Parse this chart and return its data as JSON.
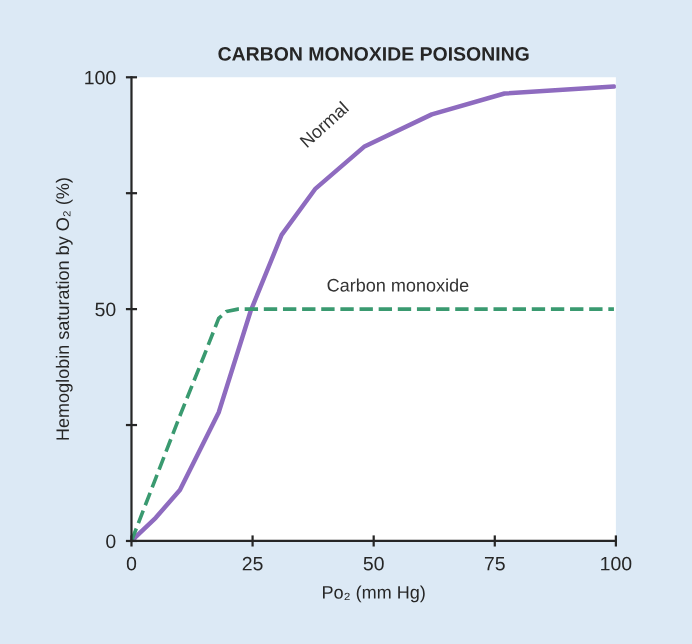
{
  "chart_data": {
    "type": "line",
    "title": "CARBON MONOXIDE POISONING",
    "xlabel": "Po₂ (mm Hg)",
    "ylabel": "Hemoglobin saturation by O₂ (%)",
    "xlim": [
      0,
      100
    ],
    "ylim": [
      0,
      100
    ],
    "xticks": [
      0,
      25,
      50,
      75,
      100
    ],
    "yticks": [
      0,
      {
        "value": 25,
        "label": null
      },
      50,
      {
        "value": 75,
        "label": null
      },
      100
    ],
    "grid": false,
    "legend": false,
    "marker": "none",
    "series": [
      {
        "name": "Normal",
        "color": "#8e6bbf",
        "line_style": "solid",
        "x": [
          0,
          5,
          10,
          12.4,
          18,
          24.6,
          31,
          38,
          48,
          62,
          77,
          99.6
        ],
        "values": [
          0,
          5,
          11,
          16,
          27.7,
          49.6,
          66,
          76,
          85,
          92,
          96.5,
          98
        ]
      },
      {
        "name": "Carbon monoxide",
        "color": "#3a9a70",
        "line_style": "dashed",
        "x": [
          0,
          5,
          10,
          15,
          18,
          19.6,
          22,
          99.6
        ],
        "values": [
          0,
          13.5,
          27,
          40,
          48,
          49.5,
          50,
          50
        ]
      }
    ]
  }
}
